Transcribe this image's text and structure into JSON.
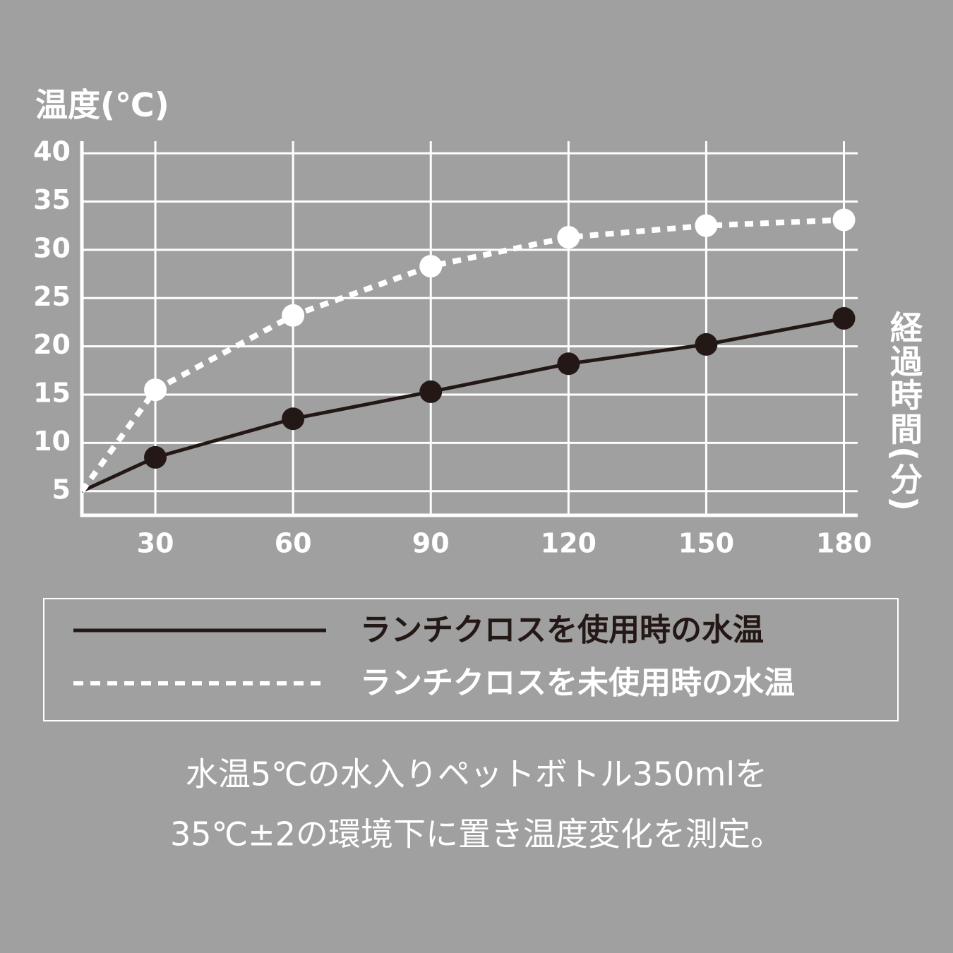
{
  "chart_data": {
    "type": "line",
    "y_label": "温度(℃)",
    "x_label": "経過時間(分)",
    "x": [
      14,
      30,
      60,
      90,
      120,
      150,
      180
    ],
    "xlim": [
      14,
      183
    ],
    "xticks": [
      30,
      60,
      90,
      120,
      150,
      180
    ],
    "ylim": [
      2.5,
      41.25
    ],
    "yticks": [
      5,
      10,
      15,
      20,
      25,
      30,
      35,
      40
    ],
    "grid": true,
    "series": [
      {
        "name": "ランチクロスを使用時の水温",
        "color": "#231815",
        "dashed": false,
        "values": [
          5,
          8.5,
          12.5,
          15.3,
          18.2,
          20.2,
          22.9
        ]
      },
      {
        "name": "ランチクロスを未使用時の水温",
        "color": "#ffffff",
        "dashed": true,
        "values": [
          5,
          15.5,
          23.2,
          28.3,
          31.3,
          32.5,
          33.1
        ]
      }
    ],
    "notes": [
      "水温5℃の水入りペットボトル350mlを",
      "35℃±2の環境下に置き温度変化を測定。"
    ]
  }
}
